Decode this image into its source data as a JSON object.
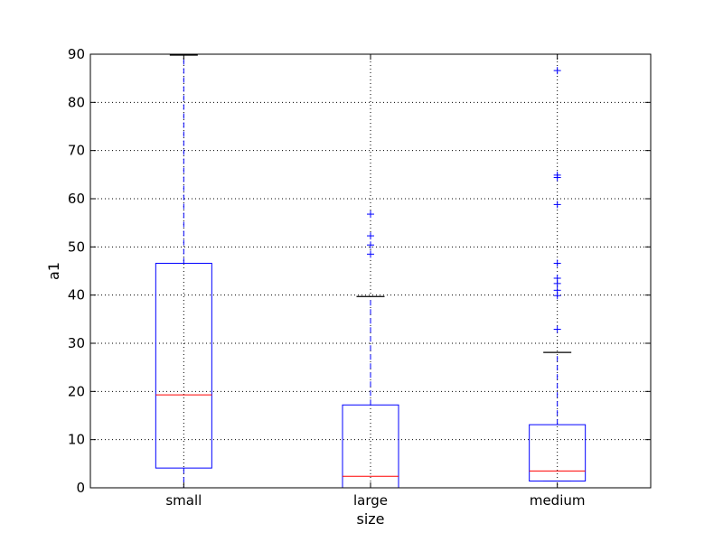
{
  "chart_data": {
    "type": "boxplot",
    "xlabel": "size",
    "ylabel": "a1",
    "ylim": [
      0,
      90
    ],
    "yticks": [
      0,
      10,
      20,
      30,
      40,
      50,
      60,
      70,
      80,
      90
    ],
    "grid": true,
    "categories": [
      "small",
      "large",
      "medium"
    ],
    "boxes": [
      {
        "category": "small",
        "whisker_low": 0,
        "q1": 4.1,
        "median": 19.3,
        "q3": 46.6,
        "whisker_high": 89.8,
        "outliers": []
      },
      {
        "category": "large",
        "whisker_low": 0,
        "q1": 0,
        "median": 2.4,
        "q3": 17.2,
        "whisker_high": 39.7,
        "outliers": [
          48.5,
          50.4,
          52.3,
          56.8
        ]
      },
      {
        "category": "medium",
        "whisker_low": 1.4,
        "q1": 1.4,
        "median": 3.5,
        "q3": 13.1,
        "whisker_high": 28.1,
        "outliers": [
          32.9,
          39.9,
          41.0,
          42.4,
          43.5,
          46.6,
          58.8,
          64.4,
          64.9,
          86.6
        ]
      }
    ],
    "colors": {
      "box": "#0000ff",
      "median": "#ff0000",
      "whisker": "#0000ff",
      "cap": "#000000",
      "outlier": "#0000ff",
      "grid": "#000000"
    }
  }
}
